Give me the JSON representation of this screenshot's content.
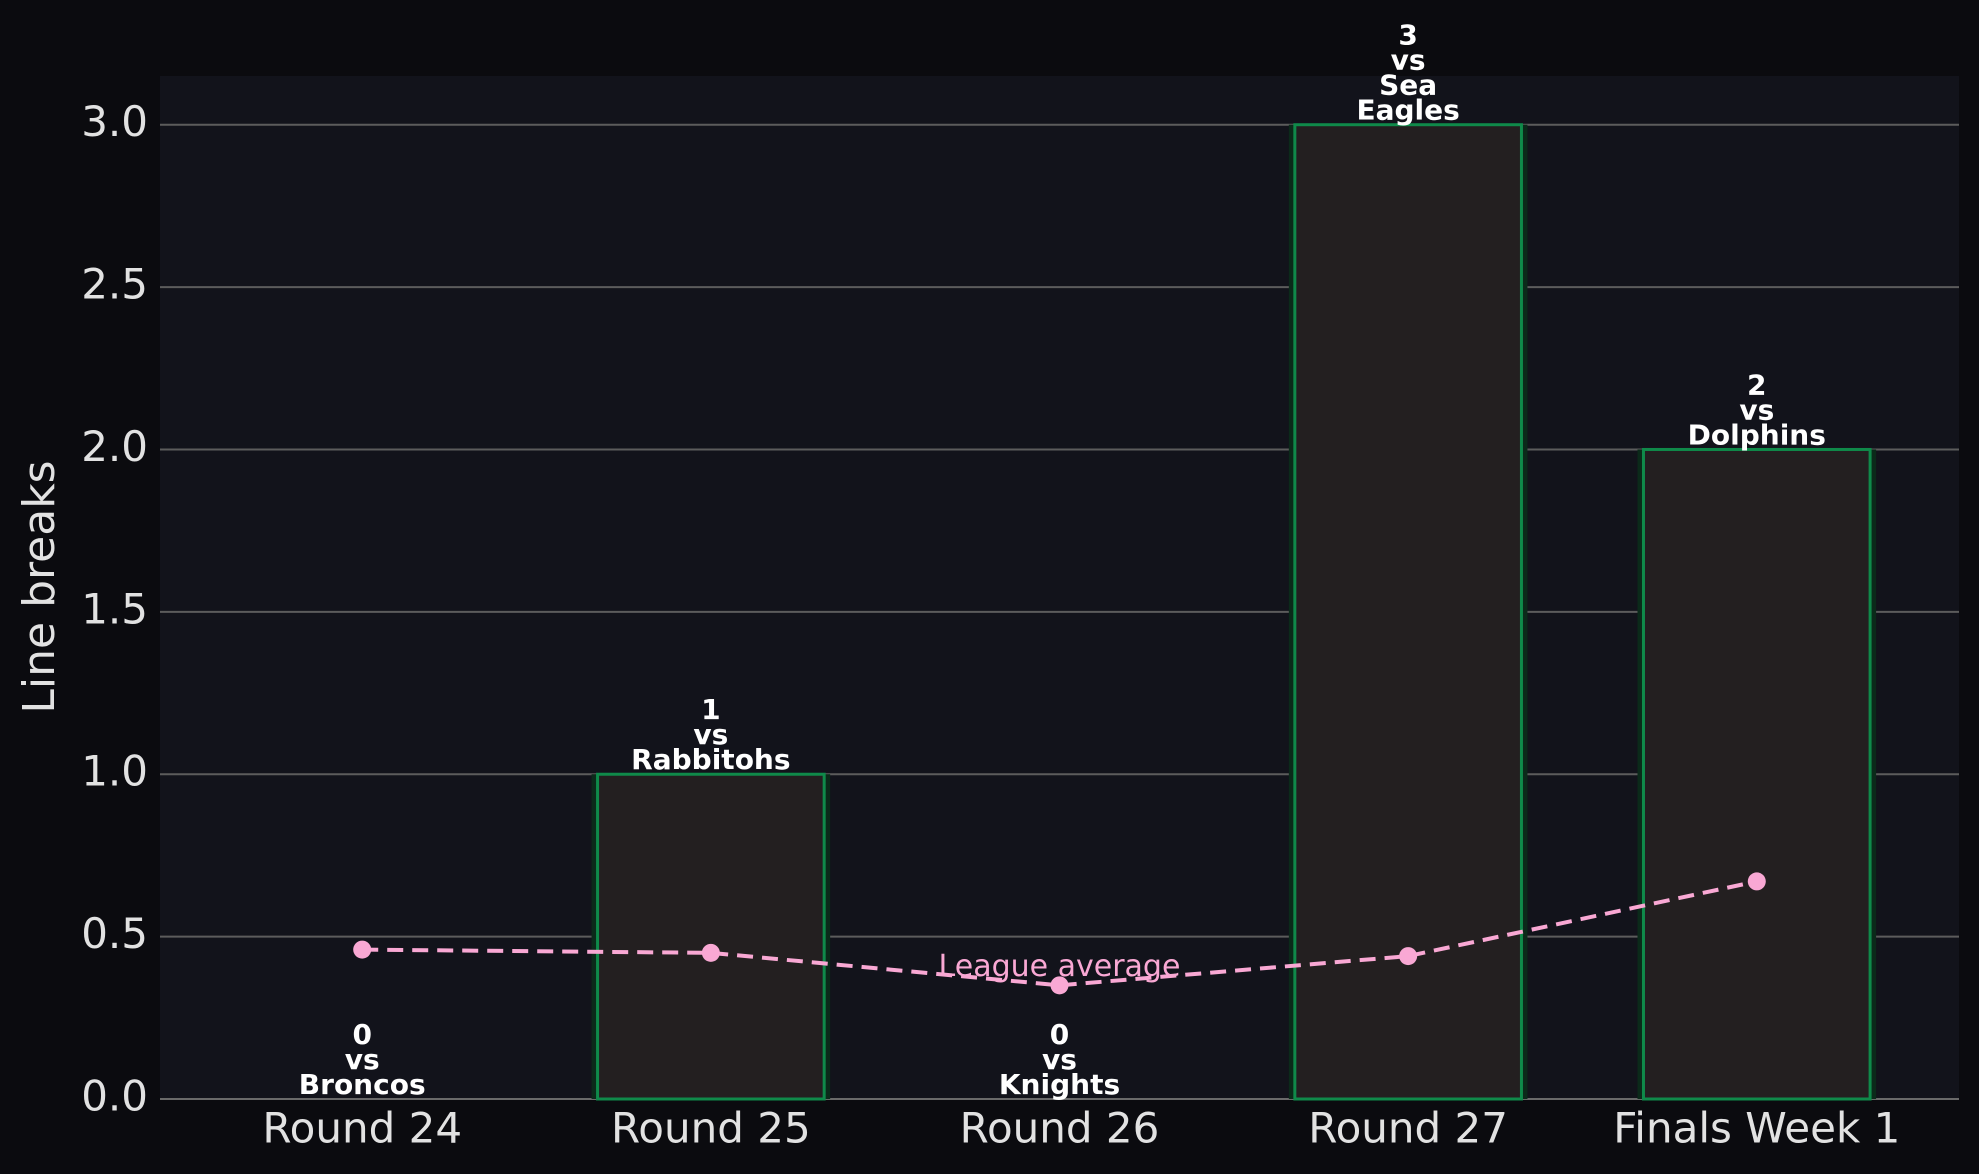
{
  "chart_data": {
    "type": "bar",
    "categories": [
      "Round 24",
      "Round 25",
      "Round 26",
      "Round 27",
      "Finals Week 1"
    ],
    "values": [
      0,
      1,
      0,
      3,
      2
    ],
    "opponent_labels": [
      "vs Broncos",
      "vs Rabbitohs",
      "vs Knights",
      "vs Sea Eagles",
      "vs Dolphins"
    ],
    "color": "#231f20",
    "edge_color": "#0f8a4a",
    "ylabel": "Line breaks",
    "ylim": [
      0,
      3.15
    ],
    "yticks": [
      {
        "value": 0,
        "label": "0.0"
      },
      0.5,
      {
        "value": 1,
        "label": "1.0"
      },
      1.5,
      {
        "value": 2,
        "label": "2.0"
      },
      2.5,
      {
        "value": 3,
        "label": "3.0"
      }
    ],
    "grid": true,
    "lines": [
      {
        "name": "League average",
        "color": "#f9a8d4",
        "values": [
          0.46,
          0.45,
          0.35,
          0.44,
          0.67
        ]
      }
    ]
  }
}
